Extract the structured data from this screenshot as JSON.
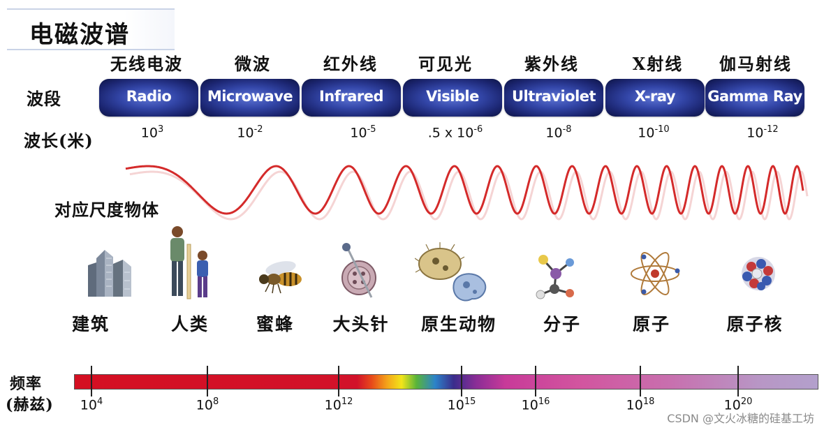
{
  "title": "电磁波谱",
  "row_labels": {
    "band": "波段",
    "wavelength": "波长(米)",
    "objects": "对应尺度物体",
    "frequency_line1": "频率",
    "frequency_line2": "(赫兹)"
  },
  "bands": [
    {
      "cn": "无线电波",
      "en": "Radio",
      "wl_base": "10",
      "wl_exp": "3"
    },
    {
      "cn": "微波",
      "en": "Microwave",
      "wl_base": "10",
      "wl_exp": "-2"
    },
    {
      "cn": "红外线",
      "en": "Infrared",
      "wl_base": "10",
      "wl_exp": "-5"
    },
    {
      "cn": "可见光",
      "en": "Visible",
      "wl_base": ".5 x 10",
      "wl_exp": "-6"
    },
    {
      "cn": "紫外线",
      "en": "Ultraviolet",
      "wl_base": "10",
      "wl_exp": "-8"
    },
    {
      "cn": "X射线",
      "en": "X-ray",
      "wl_base": "10",
      "wl_exp": "-10"
    },
    {
      "cn": "伽马射线",
      "en": "Gamma Ray",
      "wl_base": "10",
      "wl_exp": "-12"
    }
  ],
  "objects": [
    "建筑",
    "人类",
    "蜜蜂",
    "大头针",
    "原生动物",
    "分子",
    "原子",
    "原子核"
  ],
  "object_icons": [
    "buildings-icon",
    "people-icon",
    "bee-icon",
    "pin-icon",
    "protozoa-icon",
    "molecule-icon",
    "atom-icon",
    "nucleus-icon"
  ],
  "frequencies": [
    {
      "base": "10",
      "exp": "4"
    },
    {
      "base": "10",
      "exp": "8"
    },
    {
      "base": "10",
      "exp": "12"
    },
    {
      "base": "10",
      "exp": "15"
    },
    {
      "base": "10",
      "exp": "16"
    },
    {
      "base": "10",
      "exp": "18"
    },
    {
      "base": "10",
      "exp": "20"
    }
  ],
  "watermark": "CSDN @文火冰糖的硅基工坊",
  "colors": {
    "band_fill": "#1b2570",
    "wave": "#d42a2a",
    "frequency_bar_start": "#d40f22",
    "frequency_bar_end": "#b3a0cc"
  }
}
